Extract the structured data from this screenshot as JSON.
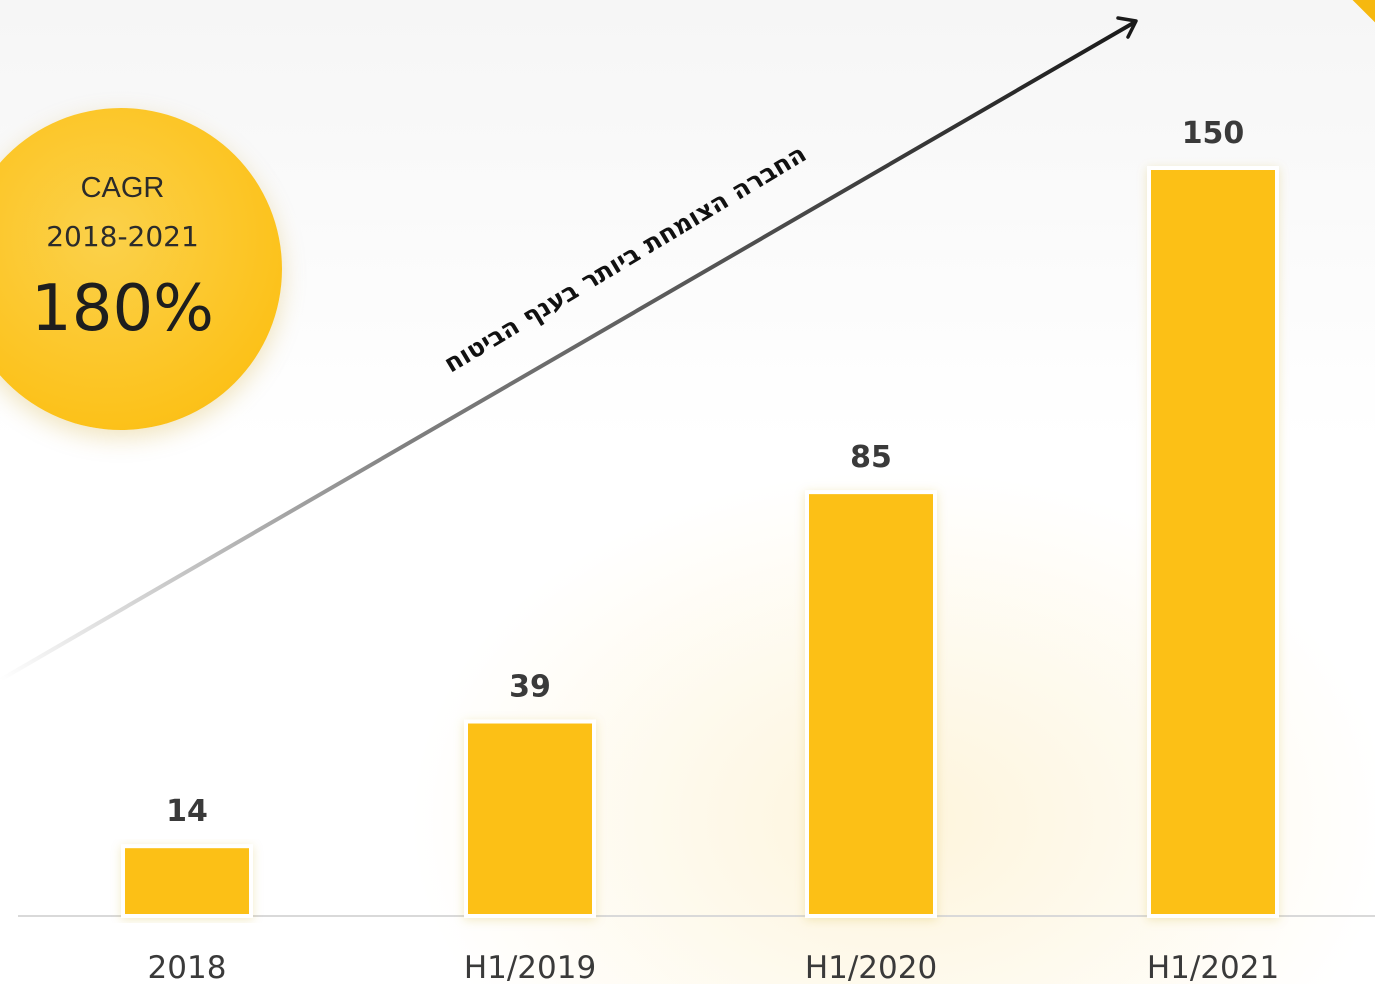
{
  "chart_data": {
    "type": "bar",
    "categories": [
      "2018",
      "H1/2019",
      "H1/2020",
      "H1/2021"
    ],
    "values": [
      14,
      39,
      85,
      150
    ],
    "title": "",
    "xlabel": "",
    "ylabel": "",
    "ylim": [
      0,
      150
    ],
    "grid": false,
    "bar_color": "#fcc012",
    "value_label_color": "#3a3a3a"
  },
  "cagr": {
    "label": "CAGR",
    "period": "2018-2021",
    "value": "180%",
    "color": "#fcc21b"
  },
  "trend": {
    "caption": "החברה הצומחת ביותר בענף הביטוח",
    "arrow_color": "#1a1a1a"
  }
}
